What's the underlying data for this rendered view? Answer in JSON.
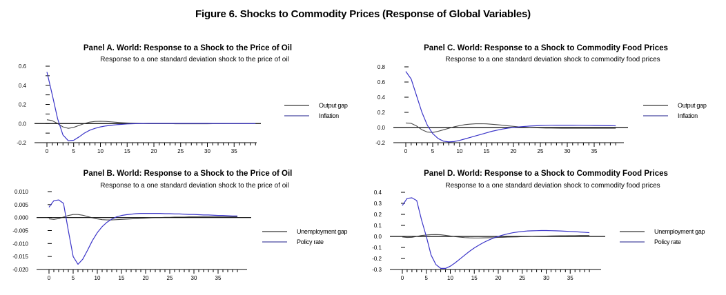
{
  "figure_title": "Figure 6. Shocks to Commodity Prices (Response of Global Variables)",
  "colors": {
    "black_series": "#2a2a2a",
    "blue_series": "#3a34c8",
    "axis": "#000000"
  },
  "chart_data": [
    {
      "id": "panel-a",
      "type": "line",
      "title": "Panel A. World: Response to a Shock to the Price of Oil",
      "subtitle": "Response to a one standard deviation shock to the price of oil",
      "xlabel": "",
      "ylabel": "",
      "xlim": [
        0,
        39
      ],
      "xticks": [
        0,
        5,
        10,
        15,
        20,
        25,
        30,
        35
      ],
      "ylim": [
        -0.2,
        0.6
      ],
      "yticks": [
        -0.2,
        0.0,
        0.2,
        0.4,
        0.6
      ],
      "ytick_labels": [
        "-0.2",
        "0.0",
        "0.2",
        "0.4",
        "0.6"
      ],
      "legend_position": "right",
      "x": [
        0,
        1,
        2,
        3,
        4,
        5,
        6,
        7,
        8,
        9,
        10,
        11,
        12,
        13,
        14,
        15,
        16,
        17,
        18,
        19,
        20,
        21,
        22,
        23,
        24,
        25,
        26,
        27,
        28,
        29,
        30,
        31,
        32,
        33,
        34,
        35,
        36,
        37,
        38,
        39
      ],
      "series": [
        {
          "name": "Output gap",
          "color": "#2a2a2a",
          "values": [
            0.04,
            0.03,
            0.0,
            -0.035,
            -0.05,
            -0.04,
            -0.02,
            0.0,
            0.015,
            0.022,
            0.024,
            0.022,
            0.018,
            0.013,
            0.009,
            0.006,
            0.004,
            0.002,
            0.001,
            0.0,
            0.0,
            0.0,
            0.0,
            0.0,
            -0.002,
            -0.002,
            -0.002,
            -0.002,
            -0.002,
            -0.002,
            -0.002,
            -0.001,
            -0.001,
            -0.001,
            0.0,
            0.0,
            0.0,
            0.0,
            0.0,
            0.0
          ]
        },
        {
          "name": "Inflation",
          "color": "#3a34c8",
          "values": [
            0.54,
            0.3,
            0.05,
            -0.12,
            -0.18,
            -0.175,
            -0.14,
            -0.1,
            -0.07,
            -0.05,
            -0.035,
            -0.025,
            -0.018,
            -0.012,
            -0.008,
            -0.004,
            -0.002,
            0.0,
            0.001,
            0.002,
            0.002,
            0.002,
            0.002,
            0.002,
            0.002,
            0.002,
            0.002,
            0.002,
            0.002,
            0.002,
            0.002,
            0.001,
            0.001,
            0.001,
            0.001,
            0.001,
            0.001,
            0.0,
            0.0,
            0.0
          ]
        }
      ]
    },
    {
      "id": "panel-b",
      "type": "line",
      "title": "Panel B. World: Response to a Shock to the Price of Oil",
      "subtitle": "Response to a one standard deviation shock to the price of oil",
      "xlabel": "",
      "ylabel": "",
      "xlim": [
        0,
        39
      ],
      "xticks": [
        0,
        5,
        10,
        15,
        20,
        25,
        30,
        35
      ],
      "ylim": [
        -0.02,
        0.01
      ],
      "yticks": [
        -0.02,
        -0.015,
        -0.01,
        -0.005,
        0.0,
        0.005,
        0.01
      ],
      "ytick_labels": [
        "-0.020",
        "-0.015",
        "-0.010",
        "-0.005",
        "0.000",
        "0.005",
        "0.010"
      ],
      "legend_position": "right",
      "x": [
        0,
        1,
        2,
        3,
        4,
        5,
        6,
        7,
        8,
        9,
        10,
        11,
        12,
        13,
        14,
        15,
        16,
        17,
        18,
        19,
        20,
        21,
        22,
        23,
        24,
        25,
        26,
        27,
        28,
        29,
        30,
        31,
        32,
        33,
        34,
        35,
        36,
        37,
        38,
        39
      ],
      "series": [
        {
          "name": "Unemployment gap",
          "color": "#2a2a2a",
          "values": [
            -0.0005,
            -0.0007,
            -0.0004,
            0.0002,
            0.0008,
            0.0012,
            0.0012,
            0.0009,
            0.0004,
            -0.0001,
            -0.0005,
            -0.0008,
            -0.0009,
            -0.0009,
            -0.0008,
            -0.0007,
            -0.0006,
            -0.0005,
            -0.0004,
            -0.0003,
            -0.0002,
            -0.0001,
            0.0,
            0.0,
            0.0001,
            0.0001,
            0.0002,
            0.0002,
            0.0002,
            0.0003,
            0.0003,
            0.0003,
            0.0003,
            0.0003,
            0.0003,
            0.0003,
            0.0003,
            0.0003,
            0.0003,
            0.0003
          ]
        },
        {
          "name": "Policy rate",
          "color": "#3a34c8",
          "values": [
            0.004,
            0.0065,
            0.0068,
            0.0055,
            -0.005,
            -0.015,
            -0.018,
            -0.016,
            -0.0125,
            -0.0088,
            -0.0058,
            -0.0035,
            -0.0018,
            -0.0006,
            0.0003,
            0.0008,
            0.0011,
            0.0013,
            0.0015,
            0.0016,
            0.0016,
            0.0016,
            0.0016,
            0.0016,
            0.0015,
            0.0015,
            0.0014,
            0.0014,
            0.0013,
            0.0012,
            0.0012,
            0.0011,
            0.001,
            0.001,
            0.0009,
            0.0008,
            0.0008,
            0.0007,
            0.0006,
            0.0006
          ]
        }
      ]
    },
    {
      "id": "panel-c",
      "type": "line",
      "title": "Panel C. World: Response to a Shock to Commodity Food Prices",
      "subtitle": "Response to a one standard deviation shock to commodity food prices",
      "xlabel": "",
      "ylabel": "",
      "xlim": [
        0,
        39
      ],
      "xticks": [
        0,
        5,
        10,
        15,
        20,
        25,
        30,
        35
      ],
      "ylim": [
        -0.2,
        0.8
      ],
      "yticks": [
        -0.2,
        0.0,
        0.2,
        0.4,
        0.6,
        0.8
      ],
      "ytick_labels": [
        "-0.2",
        "0.0",
        "0.2",
        "0.4",
        "0.6",
        "0.8"
      ],
      "legend_position": "right",
      "x": [
        0,
        1,
        2,
        3,
        4,
        5,
        6,
        7,
        8,
        9,
        10,
        11,
        12,
        13,
        14,
        15,
        16,
        17,
        18,
        19,
        20,
        21,
        22,
        23,
        24,
        25,
        26,
        27,
        28,
        29,
        30,
        31,
        32,
        33,
        34,
        35,
        36,
        37,
        38,
        39
      ],
      "series": [
        {
          "name": "Output gap",
          "color": "#2a2a2a",
          "values": [
            0.06,
            0.055,
            0.02,
            -0.03,
            -0.06,
            -0.065,
            -0.05,
            -0.03,
            -0.01,
            0.01,
            0.025,
            0.038,
            0.045,
            0.049,
            0.05,
            0.048,
            0.043,
            0.037,
            0.03,
            0.022,
            0.015,
            0.009,
            0.004,
            0.0,
            -0.003,
            -0.005,
            -0.007,
            -0.008,
            -0.009,
            -0.01,
            -0.01,
            -0.01,
            -0.01,
            -0.01,
            -0.01,
            -0.01,
            -0.01,
            -0.01,
            -0.01,
            -0.01
          ]
        },
        {
          "name": "Inflation",
          "color": "#3a34c8",
          "values": [
            0.74,
            0.64,
            0.42,
            0.2,
            0.03,
            -0.08,
            -0.145,
            -0.18,
            -0.19,
            -0.185,
            -0.17,
            -0.15,
            -0.13,
            -0.11,
            -0.09,
            -0.07,
            -0.05,
            -0.035,
            -0.02,
            -0.008,
            0.0,
            0.008,
            0.014,
            0.019,
            0.023,
            0.026,
            0.028,
            0.03,
            0.031,
            0.031,
            0.031,
            0.031,
            0.03,
            0.029,
            0.028,
            0.027,
            0.026,
            0.025,
            0.024,
            0.023
          ]
        }
      ]
    },
    {
      "id": "panel-d",
      "type": "line",
      "title": "Panel D. World: Response to a Shock to Commodity Food Prices",
      "subtitle": "Response to a one standard deviation shock to commodity food prices",
      "xlabel": "",
      "ylabel": "",
      "xlim": [
        0,
        39
      ],
      "xticks": [
        0,
        5,
        10,
        15,
        20,
        25,
        30,
        35
      ],
      "ylim": [
        -0.3,
        0.4
      ],
      "yticks": [
        -0.3,
        -0.2,
        -0.1,
        0.0,
        0.1,
        0.2,
        0.3,
        0.4
      ],
      "ytick_labels": [
        "-0.3",
        "-0.2",
        "-0.1",
        "0.0",
        "0.1",
        "0.2",
        "0.3",
        "0.4"
      ],
      "legend_position": "right",
      "x": [
        0,
        1,
        2,
        3,
        4,
        5,
        6,
        7,
        8,
        9,
        10,
        11,
        12,
        13,
        14,
        15,
        16,
        17,
        18,
        19,
        20,
        21,
        22,
        23,
        24,
        25,
        26,
        27,
        28,
        29,
        30,
        31,
        32,
        33,
        34,
        35,
        36,
        37,
        38,
        39
      ],
      "series": [
        {
          "name": "Unemployment gap",
          "color": "#2a2a2a",
          "values": [
            -0.005,
            -0.01,
            -0.008,
            0.0,
            0.008,
            0.013,
            0.016,
            0.017,
            0.015,
            0.01,
            0.004,
            -0.002,
            -0.007,
            -0.011,
            -0.013,
            -0.014,
            -0.014,
            -0.013,
            -0.012,
            -0.011,
            -0.009,
            -0.008,
            -0.006,
            -0.005,
            -0.004,
            -0.002,
            -0.001,
            0.0,
            0.001,
            0.002,
            0.003,
            0.004,
            0.005,
            0.006,
            0.006,
            0.007,
            0.007,
            0.008,
            0.008,
            0.008
          ]
        },
        {
          "name": "Policy rate",
          "color": "#3a34c8",
          "values": [
            0.28,
            0.345,
            0.35,
            0.325,
            0.15,
            0.0,
            -0.17,
            -0.255,
            -0.29,
            -0.29,
            -0.27,
            -0.24,
            -0.205,
            -0.17,
            -0.135,
            -0.105,
            -0.078,
            -0.054,
            -0.033,
            -0.015,
            0.0,
            0.013,
            0.024,
            0.033,
            0.04,
            0.045,
            0.049,
            0.051,
            0.052,
            0.053,
            0.053,
            0.052,
            0.051,
            0.049,
            0.047,
            0.045,
            0.043,
            0.04,
            0.037,
            0.034
          ]
        }
      ]
    }
  ]
}
